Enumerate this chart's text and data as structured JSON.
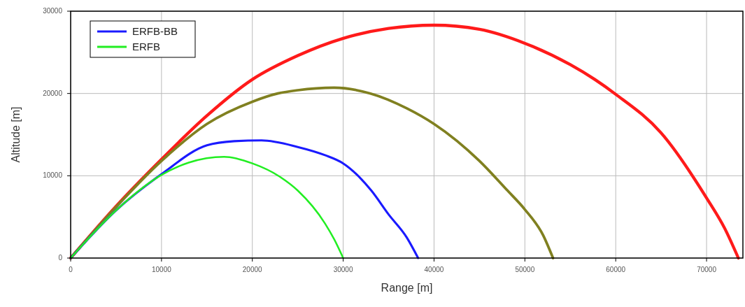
{
  "chart_data": {
    "type": "line",
    "xlabel": "Range [m]",
    "ylabel": "Altitude [m]",
    "xlim": [
      0,
      74000
    ],
    "ylim": [
      0,
      30000
    ],
    "xticks": [
      0,
      10000,
      20000,
      30000,
      40000,
      50000,
      60000,
      70000
    ],
    "yticks": [
      0,
      10000,
      20000,
      30000
    ],
    "grid": true,
    "legend": "top left",
    "marker": "none",
    "line_style": "solid",
    "series": [
      {
        "color": "#ff1a1a",
        "x": [
          0,
          5000,
          10000,
          15000,
          20000,
          25000,
          30000,
          35000,
          40000,
          45000,
          50000,
          55000,
          57700,
          60000,
          65000,
          70000,
          72000,
          73500
        ],
        "values": [
          0,
          6300,
          12000,
          17300,
          21700,
          24600,
          26700,
          27900,
          28300,
          27800,
          26100,
          23500,
          21700,
          19900,
          15200,
          7300,
          3600,
          0
        ]
      },
      {
        "color": "#808020",
        "x": [
          0,
          5000,
          10000,
          15000,
          20000,
          22800,
          25000,
          29000,
          33000,
          37000,
          40000,
          45000,
          48000,
          50000,
          52000,
          53100
        ],
        "values": [
          0,
          6200,
          11800,
          16300,
          19000,
          20000,
          20400,
          20700,
          20000,
          18200,
          16300,
          11800,
          8300,
          5900,
          2800,
          0
        ]
      },
      {
        "name": "ERFB-BB",
        "color": "#1a1aff",
        "x": [
          0,
          5000,
          10000,
          15000,
          18000,
          21000,
          25000,
          28000,
          30000,
          33100,
          35000,
          37000,
          38250
        ],
        "values": [
          0,
          5800,
          10200,
          13700,
          14200,
          14300,
          13500,
          12500,
          11500,
          8200,
          5300,
          2500,
          0
        ]
      },
      {
        "name": "ERFB",
        "color": "#22ee22",
        "x": [
          0,
          5000,
          10000,
          13000,
          16900,
          20000,
          23000,
          25000,
          28000,
          29000,
          30000
        ],
        "values": [
          0,
          5800,
          10100,
          11600,
          12300,
          11500,
          9900,
          8200,
          4200,
          2300,
          0
        ]
      }
    ]
  }
}
